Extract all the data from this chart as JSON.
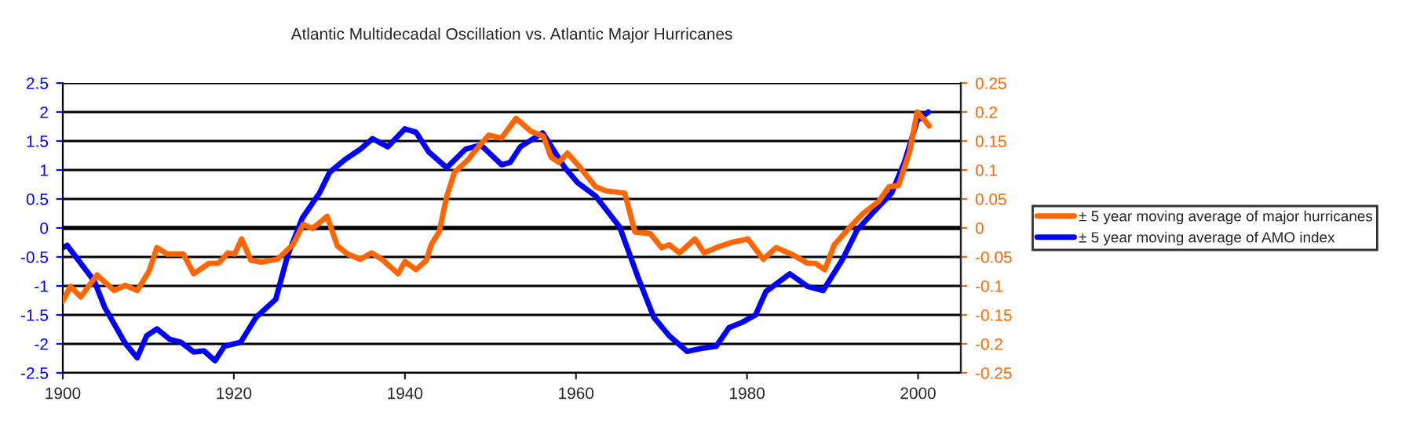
{
  "chart_data": {
    "type": "line",
    "title": "Atlantic Multidecadal Oscillation vs. Atlantic Major Hurricanes",
    "xlim": [
      1900,
      2005
    ],
    "xticks": [
      1900,
      1920,
      1940,
      1960,
      1980,
      2000
    ],
    "ylim": [
      -2.5,
      2.5
    ],
    "yticks": [
      -2.5,
      -2,
      -1.5,
      -1,
      -0.5,
      0,
      0.5,
      1,
      1.5,
      2,
      2.5
    ],
    "y2lim": [
      -0.25,
      0.25
    ],
    "y2ticks": [
      -0.25,
      -0.2,
      -0.15,
      -0.1,
      -0.05,
      0,
      0.05,
      0.1,
      0.15,
      0.2,
      0.25
    ],
    "grid": "y",
    "legend": "right",
    "marker": "none",
    "line_style": "solid",
    "series": [
      {
        "name": "± 5 year moving average of major hurricanes",
        "color": "#ff6600",
        "axis": "y2",
        "x": [
          1900,
          1900.9,
          1902.1,
          1904,
          1906,
          1907.3,
          1908.7,
          1910.1,
          1911,
          1912.2,
          1914.1,
          1915.3,
          1917.1,
          1918.2,
          1919.3,
          1920.1,
          1920.9,
          1922,
          1923.2,
          1925.1,
          1926.9,
          1928.1,
          1929.2,
          1930.9,
          1932.1,
          1933.3,
          1934.8,
          1936.1,
          1937.3,
          1939.2,
          1940,
          1941.3,
          1942.5,
          1943.1,
          1944,
          1944.9,
          1945.8,
          1947.4,
          1948.6,
          1949.8,
          1951.3,
          1953,
          1954.7,
          1956.2,
          1957.1,
          1958,
          1959,
          1960.5,
          1962.3,
          1963.5,
          1965.7,
          1966.9,
          1968.7,
          1970,
          1970.9,
          1972.1,
          1973.9,
          1975,
          1976.4,
          1978.2,
          1980.1,
          1981.9,
          1983.4,
          1985.3,
          1987.1,
          1988,
          1989.1,
          1990.2,
          1991.7,
          1993.5,
          1995.4,
          1996.6,
          1997.7,
          1999,
          1999.9,
          2000.6,
          2001.3
        ],
        "values": [
          -0.126,
          -0.101,
          -0.119,
          -0.081,
          -0.108,
          -0.099,
          -0.108,
          -0.074,
          -0.034,
          -0.045,
          -0.045,
          -0.079,
          -0.061,
          -0.061,
          -0.043,
          -0.045,
          -0.019,
          -0.056,
          -0.059,
          -0.054,
          -0.029,
          0.006,
          -0.001,
          0.02,
          -0.031,
          -0.045,
          -0.054,
          -0.043,
          -0.054,
          -0.079,
          -0.058,
          -0.072,
          -0.056,
          -0.028,
          -0.007,
          0.055,
          0.096,
          0.118,
          0.14,
          0.16,
          0.155,
          0.189,
          0.167,
          0.158,
          0.122,
          0.113,
          0.129,
          0.104,
          0.071,
          0.064,
          0.06,
          -0.007,
          -0.01,
          -0.034,
          -0.029,
          -0.043,
          -0.019,
          -0.043,
          -0.034,
          -0.025,
          -0.019,
          -0.054,
          -0.034,
          -0.046,
          -0.061,
          -0.061,
          -0.072,
          -0.029,
          -0.004,
          0.024,
          0.046,
          0.071,
          0.073,
          0.131,
          0.2,
          0.189,
          0.176
        ]
      },
      {
        "name": "± 5 year moving average of AMO index",
        "color": "#0000ff",
        "axis": "y",
        "x": [
          1900,
          1900.5,
          1903.7,
          1904.9,
          1907.3,
          1908.7,
          1909.8,
          1911,
          1912.5,
          1913.8,
          1915.3,
          1916.5,
          1917.8,
          1918.9,
          1920.8,
          1922.6,
          1924.9,
          1926.3,
          1928,
          1930,
          1931.2,
          1933,
          1934.8,
          1936.2,
          1938,
          1940,
          1941.3,
          1942.8,
          1944.9,
          1947.1,
          1948.9,
          1951.3,
          1952.3,
          1953.5,
          1956.1,
          1958.7,
          1960.2,
          1962.3,
          1965.1,
          1967.2,
          1969.1,
          1970.9,
          1973,
          1974.6,
          1976.4,
          1977.9,
          1979.4,
          1981,
          1982.2,
          1985,
          1987.1,
          1988.9,
          1991.1,
          1992.9,
          1994.7,
          1996.9,
          1998.4,
          1999.9,
          2001.2
        ],
        "values": [
          -0.34,
          -0.3,
          -0.92,
          -1.37,
          -1.99,
          -2.24,
          -1.86,
          -1.74,
          -1.92,
          -1.97,
          -2.14,
          -2.12,
          -2.29,
          -2.04,
          -1.97,
          -1.54,
          -1.23,
          -0.47,
          0.17,
          0.6,
          0.96,
          1.18,
          1.36,
          1.54,
          1.4,
          1.71,
          1.65,
          1.31,
          1.04,
          1.36,
          1.43,
          1.09,
          1.13,
          1.4,
          1.64,
          1.04,
          0.78,
          0.55,
          0.02,
          -0.83,
          -1.54,
          -1.86,
          -2.13,
          -2.08,
          -2.04,
          -1.72,
          -1.63,
          -1.5,
          -1.1,
          -0.79,
          -1.01,
          -1.08,
          -0.56,
          -0.03,
          0.26,
          0.6,
          1.13,
          1.85,
          2.0
        ]
      }
    ]
  }
}
